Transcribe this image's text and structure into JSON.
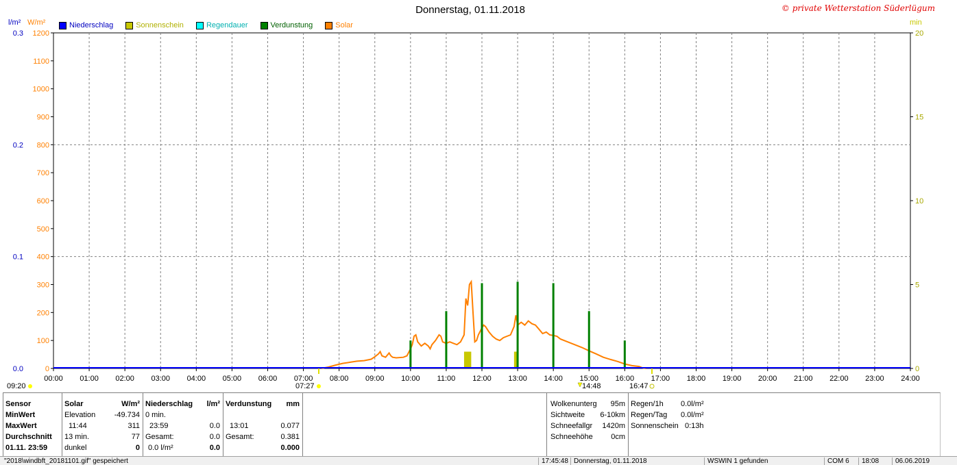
{
  "header": {
    "title": "Donnerstag, 01.11.2018",
    "credit": "© private Wetterstation Süderlügum"
  },
  "legend": [
    {
      "label": "Niederschlag",
      "color": "#0000ff"
    },
    {
      "label": "Sonnenschein",
      "color": "#c8c800"
    },
    {
      "label": "Regendauer",
      "color": "#00ffff"
    },
    {
      "label": "Verdunstung",
      "color": "#008000"
    },
    {
      "label": "Solar",
      "color": "#ff8000"
    }
  ],
  "units": {
    "left1": "l/m²",
    "left2": "W/m²",
    "right": "min"
  },
  "chart_data": {
    "type": "line",
    "title": "Donnerstag, 01.11.2018",
    "x_ticks": [
      "00:00",
      "01:00",
      "02:00",
      "03:00",
      "04:00",
      "05:00",
      "06:00",
      "07:00",
      "08:00",
      "09:00",
      "10:00",
      "11:00",
      "12:00",
      "13:00",
      "14:00",
      "15:00",
      "16:00",
      "17:00",
      "18:00",
      "19:00",
      "20:00",
      "21:00",
      "22:00",
      "23:00",
      "24:00"
    ],
    "y_solar_ticks": [
      "0",
      "100",
      "200",
      "300",
      "400",
      "500",
      "600",
      "700",
      "800",
      "900",
      "1000",
      "1100",
      "1200"
    ],
    "y_rain_ticks": [
      "0.0",
      "0.1",
      "0.2",
      "0.3"
    ],
    "y_min_ticks": [
      "0",
      "5",
      "10",
      "15",
      "20"
    ],
    "solar_ylim": [
      0,
      1200
    ],
    "rain_ylim": [
      0,
      0.3
    ],
    "min_ylim": [
      0,
      20
    ],
    "grid": true,
    "series": [
      {
        "name": "Solar",
        "type": "line",
        "color": "#ff8000",
        "points": [
          [
            7.5,
            0
          ],
          [
            7.7,
            5
          ],
          [
            7.9,
            12
          ],
          [
            8.1,
            18
          ],
          [
            8.3,
            22
          ],
          [
            8.5,
            26
          ],
          [
            8.7,
            28
          ],
          [
            8.9,
            33
          ],
          [
            9.0,
            42
          ],
          [
            9.1,
            52
          ],
          [
            9.15,
            60
          ],
          [
            9.2,
            45
          ],
          [
            9.3,
            40
          ],
          [
            9.4,
            55
          ],
          [
            9.45,
            45
          ],
          [
            9.5,
            40
          ],
          [
            9.6,
            38
          ],
          [
            9.8,
            40
          ],
          [
            9.9,
            45
          ],
          [
            10.0,
            70
          ],
          [
            10.05,
            85
          ],
          [
            10.1,
            115
          ],
          [
            10.15,
            120
          ],
          [
            10.2,
            95
          ],
          [
            10.3,
            80
          ],
          [
            10.4,
            90
          ],
          [
            10.5,
            80
          ],
          [
            10.55,
            70
          ],
          [
            10.6,
            85
          ],
          [
            10.7,
            100
          ],
          [
            10.8,
            120
          ],
          [
            10.85,
            115
          ],
          [
            10.9,
            95
          ],
          [
            11.0,
            90
          ],
          [
            11.1,
            95
          ],
          [
            11.2,
            90
          ],
          [
            11.3,
            85
          ],
          [
            11.4,
            95
          ],
          [
            11.5,
            120
          ],
          [
            11.55,
            250
          ],
          [
            11.6,
            225
          ],
          [
            11.65,
            300
          ],
          [
            11.7,
            310
          ],
          [
            11.75,
            200
          ],
          [
            11.8,
            95
          ],
          [
            11.85,
            100
          ],
          [
            11.9,
            120
          ],
          [
            12.0,
            145
          ],
          [
            12.05,
            155
          ],
          [
            12.1,
            150
          ],
          [
            12.2,
            130
          ],
          [
            12.3,
            115
          ],
          [
            12.4,
            105
          ],
          [
            12.5,
            100
          ],
          [
            12.6,
            110
          ],
          [
            12.7,
            115
          ],
          [
            12.8,
            120
          ],
          [
            12.9,
            150
          ],
          [
            12.95,
            190
          ],
          [
            13.0,
            155
          ],
          [
            13.1,
            165
          ],
          [
            13.2,
            155
          ],
          [
            13.3,
            170
          ],
          [
            13.4,
            160
          ],
          [
            13.5,
            155
          ],
          [
            13.6,
            140
          ],
          [
            13.7,
            125
          ],
          [
            13.8,
            130
          ],
          [
            13.9,
            120
          ],
          [
            14.0,
            118
          ],
          [
            14.1,
            115
          ],
          [
            14.2,
            105
          ],
          [
            14.4,
            95
          ],
          [
            14.6,
            85
          ],
          [
            14.8,
            75
          ],
          [
            15.0,
            63
          ],
          [
            15.2,
            52
          ],
          [
            15.4,
            40
          ],
          [
            15.6,
            32
          ],
          [
            15.8,
            25
          ],
          [
            16.0,
            16
          ],
          [
            16.2,
            10
          ],
          [
            16.4,
            7
          ],
          [
            16.5,
            2
          ],
          [
            16.6,
            0
          ]
        ]
      },
      {
        "name": "Verdunstung",
        "type": "bar",
        "color": "#008000",
        "x": [
          10.0,
          11.0,
          12.0,
          13.0,
          14.0,
          15.0,
          16.0
        ],
        "values": [
          100,
          205,
          305,
          310,
          305,
          205,
          100
        ],
        "base_values": [
          0,
          0,
          0,
          0,
          0,
          0,
          0
        ],
        "gap_values": [
          50,
          50,
          50,
          0,
          50,
          50,
          50
        ]
      },
      {
        "name": "Sonnenschein",
        "type": "bar",
        "color": "#c8c800",
        "x_ranges": [
          [
            11.5,
            11.7
          ],
          [
            12.9,
            13.0
          ]
        ],
        "values": [
          1,
          1
        ]
      },
      {
        "name": "Niederschlag",
        "type": "line",
        "color": "#0000ff",
        "value": 0.0
      }
    ],
    "annotations": {
      "min_time": "09:20",
      "sunrise": "07:27",
      "max_time": "14:48",
      "sunset": "16:47"
    }
  },
  "stats": {
    "labels": {
      "sensor": "Sensor",
      "min": "MinWert",
      "max": "MaxWert",
      "avg": "Durchschnitt",
      "date": "01.11. 23:59"
    },
    "solar": {
      "head": "Solar",
      "unit": "W/m²",
      "r1a": "Elevation",
      "r1b": "-49.734",
      "r2a": "11:44",
      "r2b": "311",
      "r3a": "13 min.",
      "r3b": "77",
      "r4a": "dunkel",
      "r4b": "0"
    },
    "rain": {
      "head": "Niederschlag",
      "unit": "l/m²",
      "r1a": "0 min.",
      "r2a": "23:59",
      "r2b": "0.0",
      "r3a": "Gesamt:",
      "r3b": "0.0",
      "r4a": "0.0 l/m²",
      "r4b": "0.0"
    },
    "evap": {
      "head": "Verdunstung",
      "unit": "mm",
      "r2a": "13:01",
      "r2b": "0.077",
      "r3a": "Gesamt:",
      "r3b": "0.381",
      "r4b": "0.000"
    },
    "weather": [
      {
        "label": "Wolkenunterg",
        "value": "95m"
      },
      {
        "label": "Sichtweite",
        "value": "6-10km"
      },
      {
        "label": "Schneefallgr",
        "value": "1420m"
      },
      {
        "label": "Schneehöhe",
        "value": "0cm"
      }
    ],
    "weather2": [
      {
        "label": "Regen/1h",
        "value": "0.0l/m²"
      },
      {
        "label": "Regen/Tag",
        "value": "0.0l/m²"
      },
      {
        "label": "Sonnenschein",
        "value": "0:13h"
      }
    ]
  },
  "statusbar": {
    "file": "\"2018\\windbft_20181101.gif\" gespeichert",
    "time": "17:45:48",
    "date": "Donnerstag, 01.11.2018",
    "found": "WSWIN 1 gefunden",
    "com": "COM 6",
    "clock": "18:08",
    "day": "06.06.2019"
  }
}
